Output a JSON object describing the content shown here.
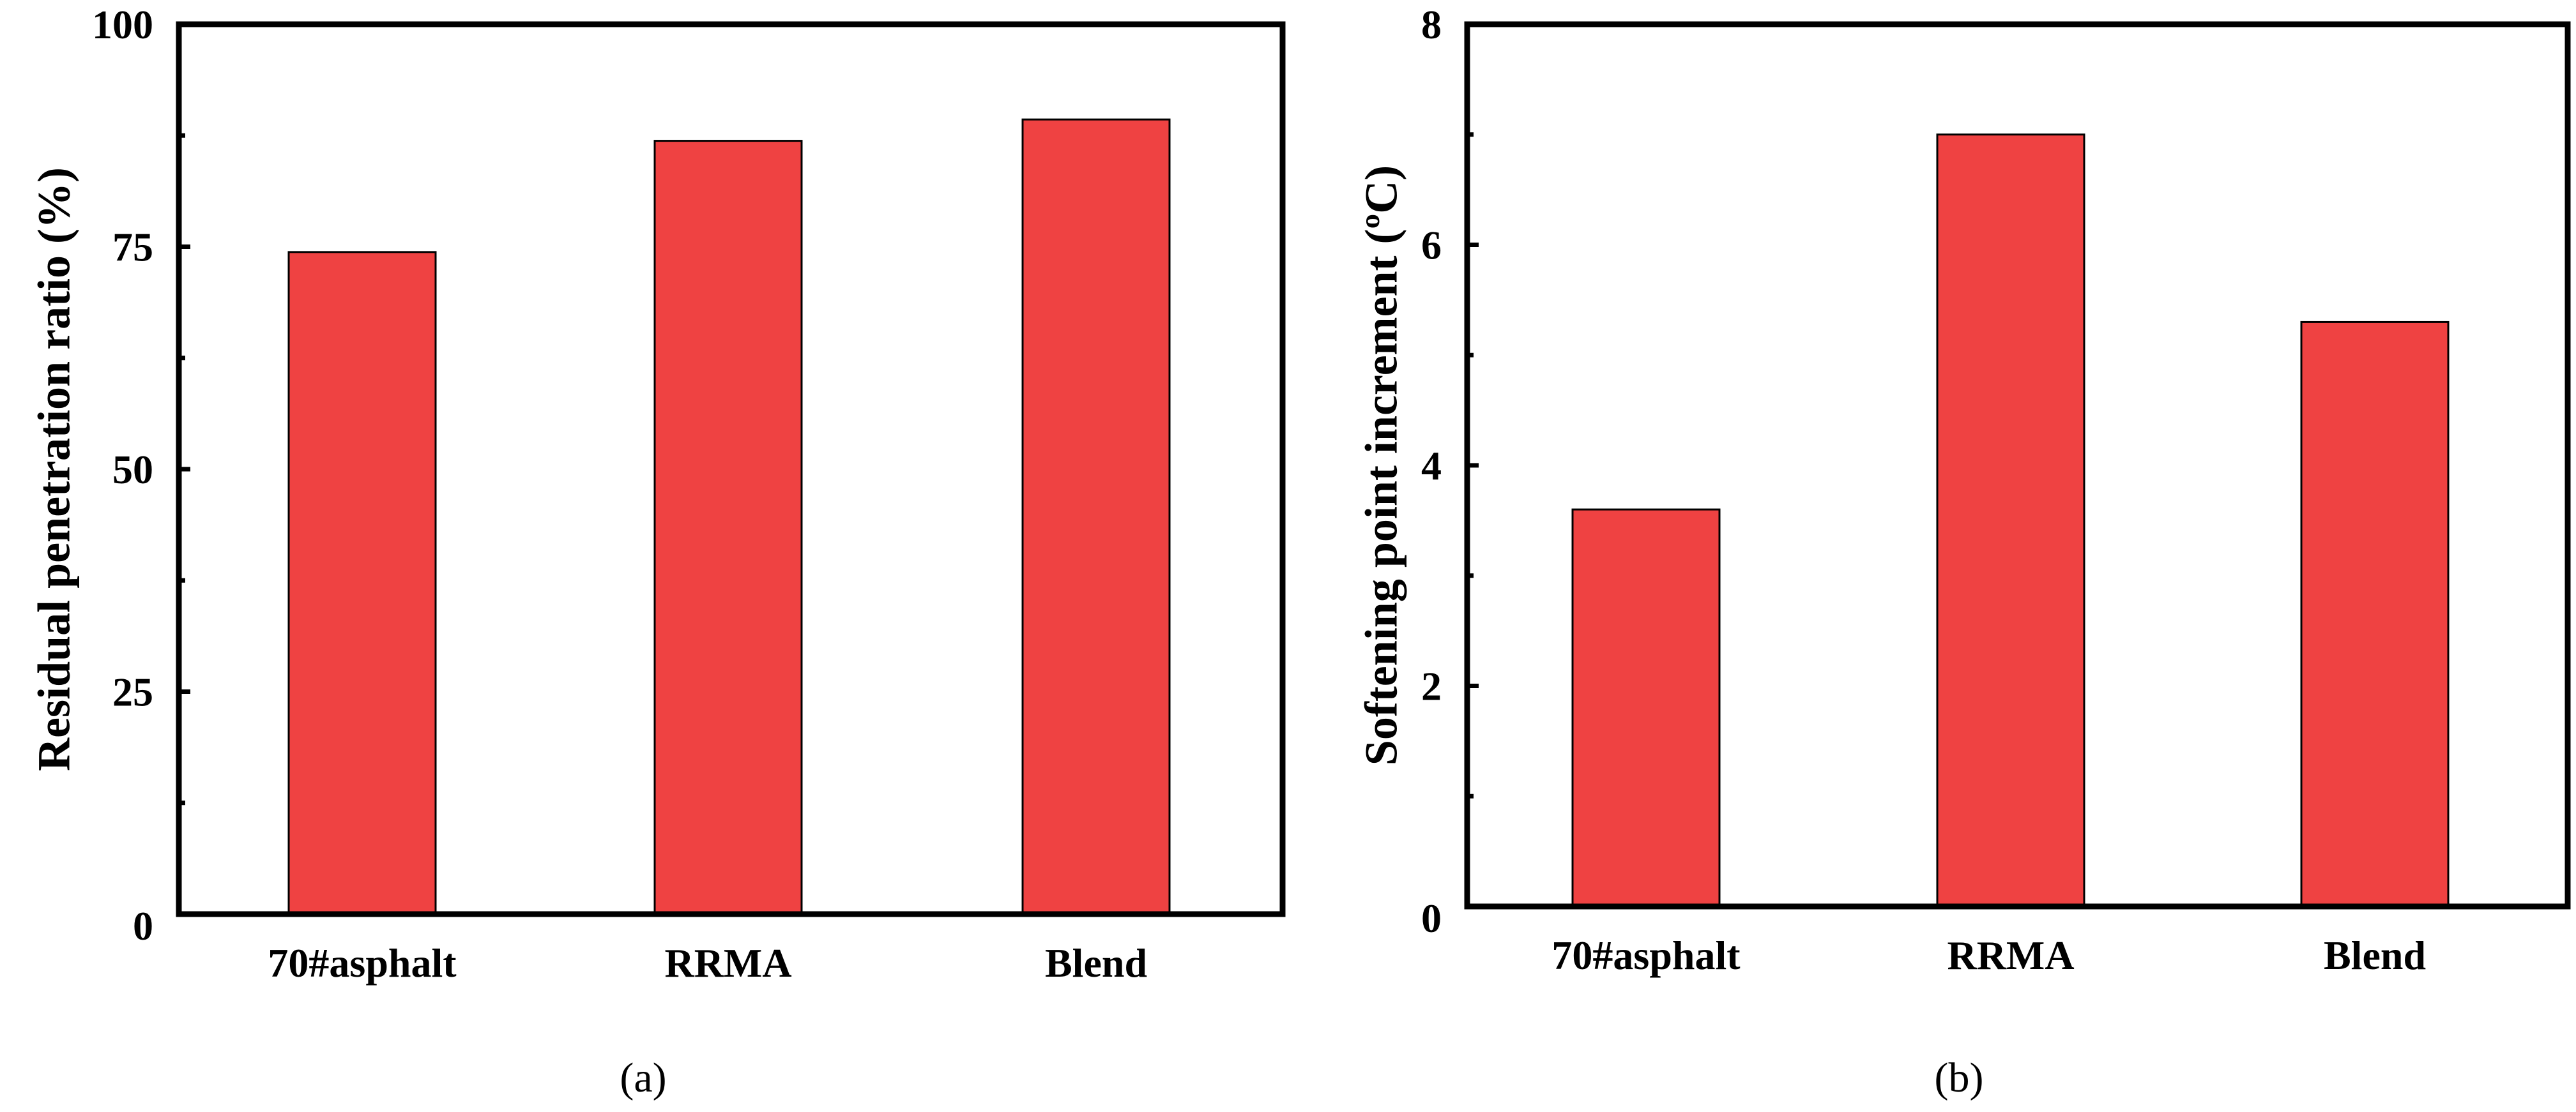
{
  "colors": {
    "bar_fill": "#ef4242",
    "axis": "#000000"
  },
  "chart_data": [
    {
      "type": "bar",
      "panel_label": "(a)",
      "title": "",
      "xlabel": "",
      "ylabel": "Residual penetration ratio (%)",
      "categories": [
        "70#asphalt",
        "RRMA",
        "Blend"
      ],
      "values": [
        74.4,
        86.9,
        89.3
      ],
      "ylim": [
        0,
        100
      ],
      "yticks": [
        0,
        25,
        50,
        75,
        100
      ],
      "ytick_labels": [
        "0",
        "25",
        "50",
        "75",
        "100"
      ],
      "minor_tick_step": 12.5,
      "grid": false
    },
    {
      "type": "bar",
      "panel_label": "(b)",
      "title": "",
      "xlabel": "",
      "ylabel": "Softening point increment (ºC)",
      "categories": [
        "70#asphalt",
        "RRMA",
        "Blend"
      ],
      "values": [
        3.6,
        7.0,
        5.3
      ],
      "ylim": [
        0,
        8
      ],
      "yticks": [
        0,
        2,
        4,
        6,
        8
      ],
      "ytick_labels": [
        "0",
        "2",
        "4",
        "6",
        "8"
      ],
      "minor_tick_step": 1,
      "grid": false
    }
  ]
}
